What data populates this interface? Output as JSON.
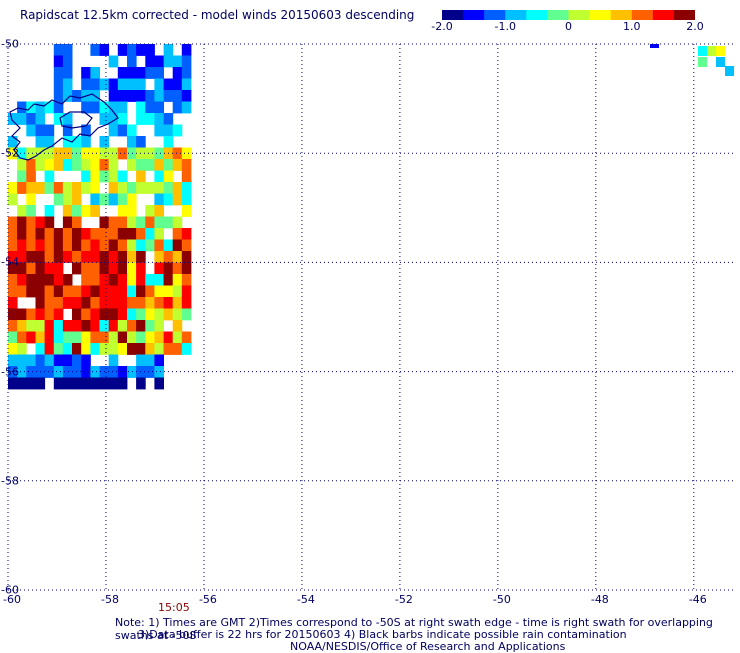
{
  "title": "Rapidscat 12.5km corrected - model winds 20150603 descending",
  "colorbar": {
    "colors": [
      "#00008b",
      "#0000ff",
      "#0060ff",
      "#00c0ff",
      "#00ffff",
      "#60ff90",
      "#c0ff30",
      "#ffff00",
      "#ffc000",
      "#ff6000",
      "#ff0000",
      "#8b0000"
    ],
    "ticks": [
      "-2.0",
      "-1.0",
      "0",
      "1.0",
      "2.0"
    ]
  },
  "map": {
    "lon_range": [
      -60,
      -45.2
    ],
    "lat_range": [
      -60,
      -50
    ],
    "lon_labels": [
      "-60",
      "-58",
      "-56",
      "-54",
      "-52",
      "-50",
      "-48",
      "-46"
    ],
    "lat_labels": [
      "-50",
      "-52",
      "-54",
      "-56",
      "-58",
      "-60"
    ],
    "gridline_style": "dotted",
    "coastline": "Falkland Islands"
  },
  "time_label": "15:05",
  "notes": [
    "Note: 1) Times are GMT 2)Times correspond to -50S at right swath edge - time is right swath for overlapping swaths at -50S",
    "3)Data buffer is 22 hrs for 20150603 4) Black barbs indicate possible rain contamination",
    "NOAA/NESDIS/Office of Research and Applications"
  ]
}
